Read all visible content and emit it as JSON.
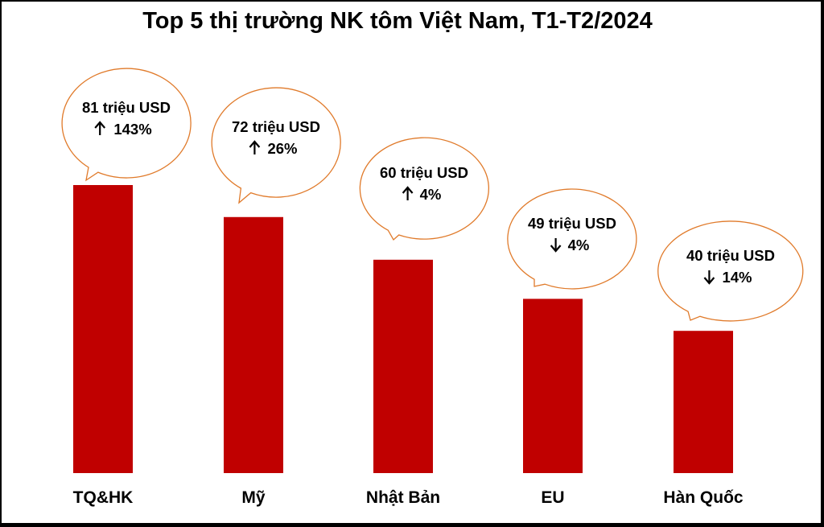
{
  "title": "Top 5 thị trường NK tôm Việt Nam, T1-T2/2024",
  "colors": {
    "bar": "#c00000",
    "bubble_border": "#e07a2a"
  },
  "chart_data": {
    "type": "bar",
    "title": "Top 5 thị trường NK tôm Việt Nam, T1-T2/2024",
    "categories": [
      "TQ&HK",
      "Mỹ",
      "Nhật Bản",
      "EU",
      "Hàn Quốc"
    ],
    "values": [
      81,
      72,
      60,
      49,
      40
    ],
    "unit": "triệu USD",
    "labels": [
      "81 triệu USD",
      "72 triệu USD",
      "60 triệu USD",
      "49 triệu USD",
      "40 triệu USD"
    ],
    "changes": [
      {
        "direction": "up",
        "text": "143%"
      },
      {
        "direction": "up",
        "text": "26%"
      },
      {
        "direction": "up",
        "text": "4%"
      },
      {
        "direction": "down",
        "text": "4%"
      },
      {
        "direction": "down",
        "text": "14%"
      }
    ],
    "xlabel": "",
    "ylabel": "",
    "ylim": [
      0,
      100
    ],
    "grid": false,
    "legend": "none"
  }
}
